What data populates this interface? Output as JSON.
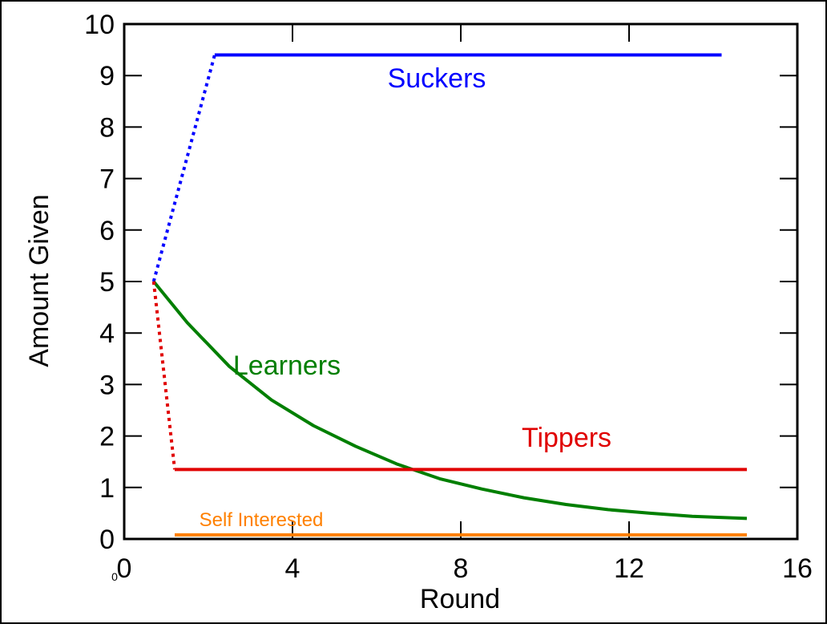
{
  "chart_data": {
    "type": "line",
    "x_label": "Round",
    "y_label": "Amount Given",
    "corner_note": "0",
    "xlim": [
      0,
      16
    ],
    "xticks": [
      0,
      4,
      8,
      12,
      16
    ],
    "ylim": [
      0,
      10
    ],
    "yticks": [
      0,
      1,
      2,
      3,
      4,
      5,
      6,
      7,
      8,
      9,
      10
    ],
    "grid": false,
    "series": [
      {
        "name": "Suckers",
        "color": "#0000ff",
        "dotted_first_segment": true,
        "x": [
          0.7,
          2.15,
          14.2
        ],
        "values": [
          5,
          9.4,
          9.4
        ]
      },
      {
        "name": "Learners",
        "color": "#007f00",
        "dotted_first_segment": false,
        "x": [
          0.7,
          1.5,
          2.5,
          3.5,
          4.5,
          5.5,
          6.5,
          7.5,
          8.5,
          9.5,
          10.5,
          11.5,
          12.5,
          13.5,
          14.8
        ],
        "values": [
          5.0,
          4.2,
          3.35,
          2.7,
          2.2,
          1.8,
          1.45,
          1.17,
          0.97,
          0.8,
          0.67,
          0.57,
          0.5,
          0.44,
          0.4
        ]
      },
      {
        "name": "Tippers",
        "color": "#e00000",
        "dotted_first_segment": true,
        "x": [
          0.7,
          1.2,
          14.8
        ],
        "values": [
          5,
          1.35,
          1.35
        ]
      },
      {
        "name": "Self Interested",
        "color": "#ff8000",
        "dotted_first_segment": false,
        "x": [
          1.2,
          14.8
        ],
        "values": [
          0.08,
          0.08
        ]
      }
    ]
  }
}
